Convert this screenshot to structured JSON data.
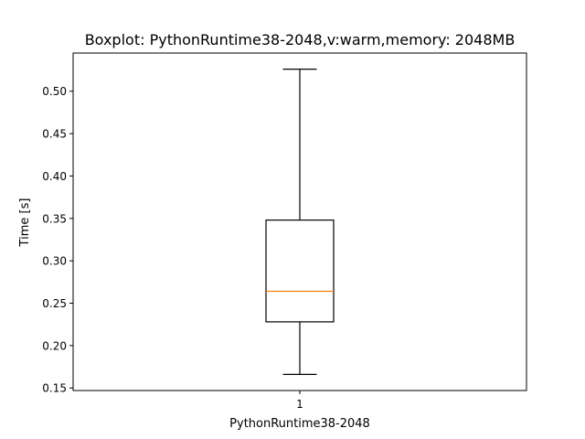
{
  "chart_data": {
    "type": "box",
    "title": "Boxplot: PythonRuntime38-2048,v:warm,memory: 2048MB",
    "xlabel": "PythonRuntime38-2048",
    "ylabel": "Time [s]",
    "categories": [
      "1"
    ],
    "ylim": [
      0.147,
      0.545
    ],
    "yticks": [
      0.15,
      0.2,
      0.25,
      0.3,
      0.35,
      0.4,
      0.45,
      0.5
    ],
    "ytick_labels": [
      "0.15",
      "0.20",
      "0.25",
      "0.30",
      "0.35",
      "0.40",
      "0.45",
      "0.50"
    ],
    "boxes": [
      {
        "category": "1",
        "whisker_low": 0.166,
        "q1": 0.228,
        "median": 0.264,
        "q3": 0.348,
        "whisker_high": 0.526
      }
    ],
    "grid": false,
    "colors": {
      "box": "#000000",
      "median": "#ff7f0e"
    }
  }
}
